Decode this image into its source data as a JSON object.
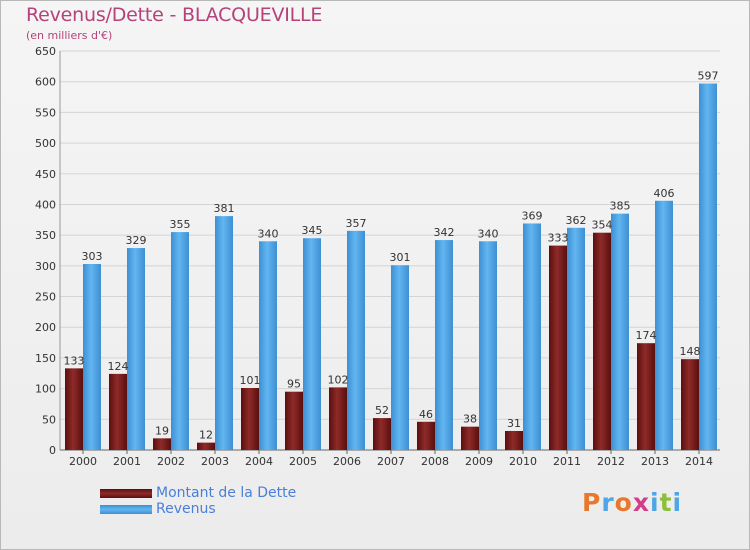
{
  "header": {
    "title": "Revenus/Dette - BLACQUEVILLE",
    "subtitle": "(en milliers d'€)"
  },
  "legend": {
    "items": [
      {
        "label": "Montant de la Dette",
        "color": "#7a1a1a"
      },
      {
        "label": "Revenus",
        "color": "#4ea6e6"
      }
    ]
  },
  "logo": {
    "text": "Proxiti",
    "letter_colors": [
      "#e8792c",
      "#4ea6e6",
      "#e8792c",
      "#d63c8c",
      "#4ea6e6",
      "#8bbf3c",
      "#4ea6e6"
    ]
  },
  "chart_data": {
    "type": "bar",
    "title": "Revenus/Dette - BLACQUEVILLE",
    "subtitle": "(en milliers d'€)",
    "categories": [
      "2000",
      "2001",
      "2002",
      "2003",
      "2004",
      "2005",
      "2006",
      "2007",
      "2008",
      "2009",
      "2010",
      "2011",
      "2012",
      "2013",
      "2014"
    ],
    "series": [
      {
        "name": "Montant de la Dette",
        "color": "#7a1a1a",
        "values": [
          133,
          124,
          19,
          12,
          101,
          95,
          102,
          52,
          46,
          38,
          31,
          333,
          354,
          174,
          148
        ]
      },
      {
        "name": "Revenus",
        "color": "#4ea6e6",
        "values": [
          303,
          329,
          355,
          381,
          340,
          345,
          357,
          301,
          342,
          340,
          369,
          362,
          385,
          406,
          597
        ]
      }
    ],
    "ylim": [
      0,
      650
    ],
    "yticks": [
      0,
      50,
      100,
      150,
      200,
      250,
      300,
      350,
      400,
      450,
      500,
      550,
      600,
      650
    ],
    "grid": true,
    "legend_position": "bottom-left"
  }
}
